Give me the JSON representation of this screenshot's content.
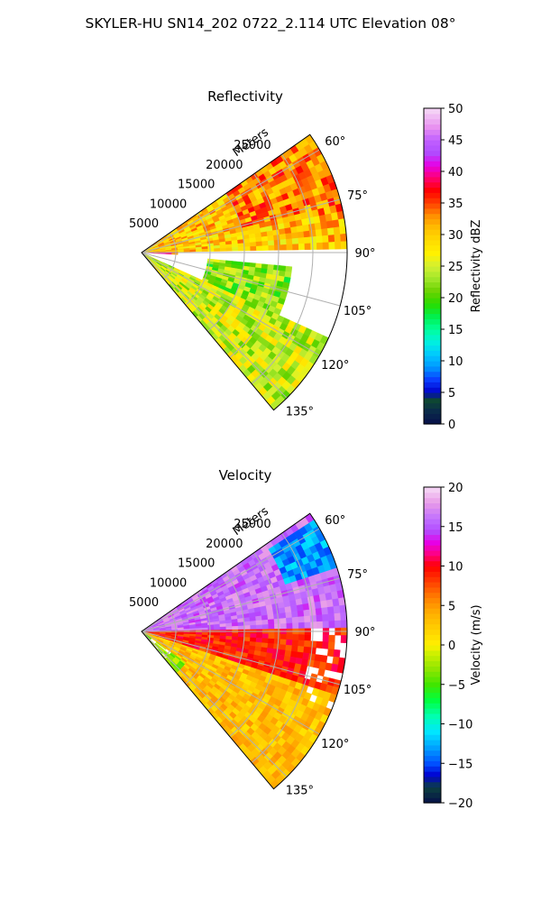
{
  "figure": {
    "suptitle": "SKYLER-HU  SN14_202  0722_2.114 UTC Elevation 08°"
  },
  "chart_data": [
    {
      "type": "heatmap",
      "projection": "polar-sector",
      "title": "Reflectivity",
      "radial_axis_label": "Meters",
      "radial_ticks": [
        "5000",
        "10000",
        "15000",
        "20000",
        "25000"
      ],
      "azimuth_ticks": [
        "60°",
        "75°",
        "90°",
        "105°",
        "120°",
        "135°"
      ],
      "azimuth_range_deg": [
        55,
        140
      ],
      "range_max_m": 30000,
      "grid": true,
      "colorbar": {
        "label": "Reflectivity dBZ",
        "range": [
          0,
          50
        ],
        "ticks": [
          "0",
          "5",
          "10",
          "15",
          "20",
          "25",
          "30",
          "35",
          "40",
          "45",
          "50"
        ]
      },
      "field_summary": [
        {
          "azimuth_deg": [
            55,
            90
          ],
          "range_m": [
            0,
            30000
          ],
          "dbz": 30
        },
        {
          "azimuth_deg": [
            88,
            93
          ],
          "range_m": [
            1000,
            5000
          ],
          "dbz": 37
        },
        {
          "azimuth_deg": [
            95,
            115
          ],
          "range_m": [
            10000,
            22000
          ],
          "dbz": 22
        },
        {
          "azimuth_deg": [
            115,
            140
          ],
          "range_m": [
            0,
            30000
          ],
          "dbz": 25
        }
      ]
    },
    {
      "type": "heatmap",
      "projection": "polar-sector",
      "title": "Velocity",
      "radial_axis_label": "Meters",
      "radial_ticks": [
        "5000",
        "10000",
        "15000",
        "20000",
        "25000"
      ],
      "azimuth_ticks": [
        "60°",
        "75°",
        "90°",
        "105°",
        "120°",
        "135°"
      ],
      "azimuth_range_deg": [
        55,
        140
      ],
      "range_max_m": 30000,
      "grid": true,
      "colorbar": {
        "label": "Velocity (m/s)",
        "range": [
          -20,
          20
        ],
        "ticks": [
          "−20",
          "−15",
          "−10",
          "−5",
          "0",
          "5",
          "10",
          "15",
          "20"
        ]
      },
      "field_summary": [
        {
          "azimuth_deg": [
            55,
            88
          ],
          "range_m": [
            0,
            30000
          ],
          "velocity_ms": 16
        },
        {
          "azimuth_deg": [
            58,
            72
          ],
          "range_m": [
            22000,
            30000
          ],
          "velocity_ms": -13
        },
        {
          "azimuth_deg": [
            88,
            108
          ],
          "range_m": [
            0,
            30000
          ],
          "velocity_ms": 9
        },
        {
          "azimuth_deg": [
            108,
            140
          ],
          "range_m": [
            0,
            30000
          ],
          "velocity_ms": 3
        },
        {
          "azimuth_deg": [
            125,
            140
          ],
          "range_m": [
            0,
            8000
          ],
          "velocity_ms": -3
        }
      ]
    }
  ]
}
